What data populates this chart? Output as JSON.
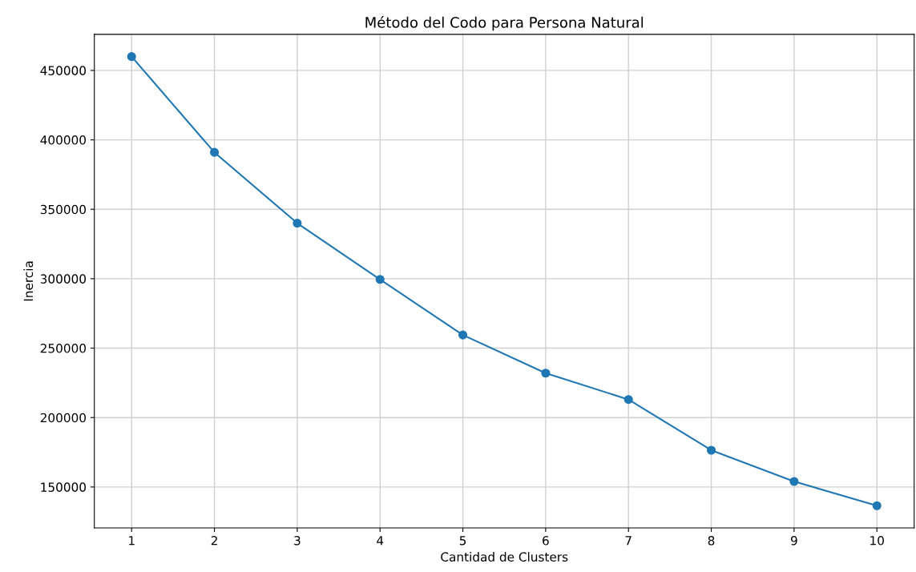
{
  "chart_data": {
    "type": "line",
    "title": "Método del Codo para Persona Natural",
    "xlabel": "Cantidad de Clusters",
    "ylabel": "Inercia",
    "x": [
      1,
      2,
      3,
      4,
      5,
      6,
      7,
      8,
      9,
      10
    ],
    "series": [
      {
        "color": "#1f77b4",
        "values": [
          460000,
          391000,
          340000,
          299500,
          259500,
          232000,
          213000,
          176500,
          154000,
          136500
        ]
      }
    ],
    "xlim": [
      0.55,
      10.45
    ],
    "xticks": [
      1,
      2,
      3,
      4,
      5,
      6,
      7,
      8,
      9,
      10
    ],
    "ylim": [
      120500,
      476000
    ],
    "yticks": [
      150000,
      200000,
      250000,
      300000,
      350000,
      400000,
      450000
    ],
    "grid": true,
    "marker": "circle",
    "line_style": "solid"
  }
}
